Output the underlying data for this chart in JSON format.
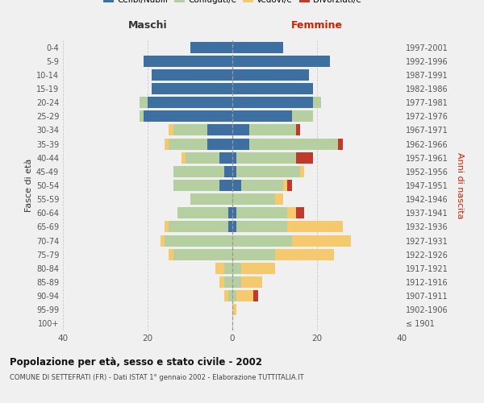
{
  "age_groups": [
    "100+",
    "95-99",
    "90-94",
    "85-89",
    "80-84",
    "75-79",
    "70-74",
    "65-69",
    "60-64",
    "55-59",
    "50-54",
    "45-49",
    "40-44",
    "35-39",
    "30-34",
    "25-29",
    "20-24",
    "15-19",
    "10-14",
    "5-9",
    "0-4"
  ],
  "birth_years": [
    "≤ 1901",
    "1902-1906",
    "1907-1911",
    "1912-1916",
    "1917-1921",
    "1922-1926",
    "1927-1931",
    "1932-1936",
    "1937-1941",
    "1942-1946",
    "1947-1951",
    "1952-1956",
    "1957-1961",
    "1962-1966",
    "1967-1971",
    "1972-1976",
    "1977-1981",
    "1982-1986",
    "1987-1991",
    "1992-1996",
    "1997-2001"
  ],
  "maschi": {
    "celibi": [
      0,
      0,
      0,
      0,
      0,
      0,
      0,
      1,
      1,
      0,
      3,
      2,
      3,
      6,
      6,
      21,
      20,
      19,
      19,
      21,
      10
    ],
    "coniugati": [
      0,
      0,
      1,
      2,
      2,
      14,
      16,
      14,
      12,
      10,
      11,
      12,
      8,
      9,
      8,
      1,
      2,
      0,
      0,
      0,
      0
    ],
    "vedovi": [
      0,
      0,
      1,
      1,
      2,
      1,
      1,
      1,
      0,
      0,
      0,
      0,
      1,
      1,
      1,
      0,
      0,
      0,
      0,
      0,
      0
    ],
    "divorziati": [
      0,
      0,
      0,
      0,
      0,
      0,
      0,
      0,
      0,
      0,
      0,
      0,
      0,
      0,
      0,
      0,
      0,
      0,
      0,
      0,
      0
    ]
  },
  "femmine": {
    "nubili": [
      0,
      0,
      0,
      0,
      0,
      0,
      0,
      1,
      1,
      0,
      2,
      1,
      1,
      4,
      4,
      14,
      19,
      19,
      18,
      23,
      12
    ],
    "coniugate": [
      0,
      0,
      1,
      2,
      2,
      10,
      14,
      12,
      12,
      10,
      10,
      15,
      14,
      21,
      11,
      5,
      2,
      0,
      0,
      0,
      0
    ],
    "vedove": [
      0,
      1,
      4,
      5,
      8,
      14,
      14,
      13,
      2,
      2,
      1,
      1,
      0,
      0,
      0,
      0,
      0,
      0,
      0,
      0,
      0
    ],
    "divorziate": [
      0,
      0,
      1,
      0,
      0,
      0,
      0,
      0,
      2,
      0,
      1,
      0,
      4,
      1,
      1,
      0,
      0,
      0,
      0,
      0,
      0
    ]
  },
  "colors": {
    "celibi": "#3d6fa0",
    "coniugati": "#b5cfa0",
    "vedovi": "#f5c96e",
    "divorziati": "#c0392b"
  },
  "title": "Popolazione per età, sesso e stato civile - 2002",
  "subtitle": "COMUNE DI SETTEFRATI (FR) - Dati ISTAT 1° gennaio 2002 - Elaborazione TUTTITALIA.IT",
  "xlim": 40,
  "ylabel_left": "Fasce di età",
  "ylabel_right": "Anni di nascita",
  "xlabel_maschi": "Maschi",
  "xlabel_femmine": "Femmine",
  "background_color": "#f0f0f0"
}
